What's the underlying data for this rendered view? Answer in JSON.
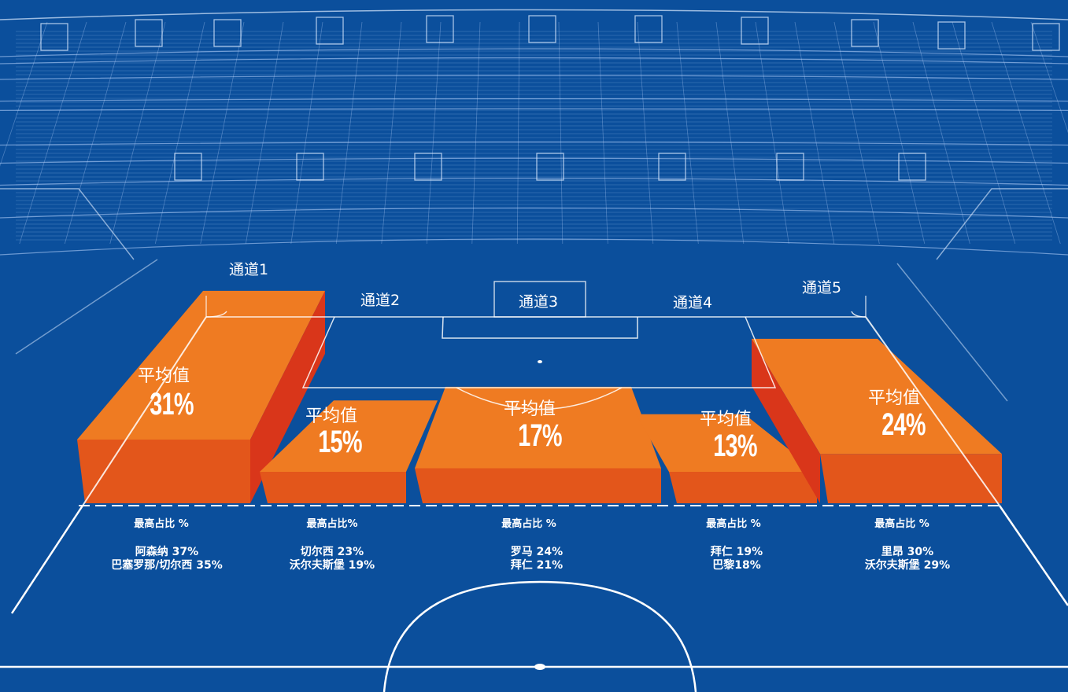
{
  "colors": {
    "background": "#0b4f9c",
    "bar_top": "#ef7b22",
    "bar_front": "#e3561b",
    "bar_side": "#d9361a",
    "lines": "#ffffff"
  },
  "chart_data": {
    "type": "bar",
    "categories": [
      "通道1",
      "通道2",
      "通道3",
      "通道4",
      "通道5"
    ],
    "series": [
      {
        "name": "平均值",
        "values": [
          31,
          15,
          17,
          13,
          24
        ]
      }
    ],
    "ylim": [
      0,
      35
    ],
    "unit": "%",
    "lanes": [
      {
        "label": "通道1",
        "avg_label": "平均值",
        "avg_value": "31%",
        "max_caption": "最高占比 %",
        "teams": [
          "阿森纳 37%",
          "巴塞罗那/切尔西 35%"
        ]
      },
      {
        "label": "通道2",
        "avg_label": "平均值",
        "avg_value": "15%",
        "max_caption": "最高占比%",
        "teams": [
          "切尔西 23%",
          "沃尔夫斯堡 19%"
        ]
      },
      {
        "label": "通道3",
        "avg_label": "平均值",
        "avg_value": "17%",
        "max_caption": "最高占比 %",
        "teams": [
          "罗马 24%",
          "拜仁 21%"
        ]
      },
      {
        "label": "通道4",
        "avg_label": "平均值",
        "avg_value": "13%",
        "max_caption": "最高占比 %",
        "teams": [
          "拜仁 19%",
          "巴黎18%"
        ]
      },
      {
        "label": "通道5",
        "avg_label": "平均值",
        "avg_value": "24%",
        "max_caption": "最高占比 %",
        "teams": [
          "里昂 30%",
          "沃尔夫斯堡 29%"
        ]
      }
    ]
  }
}
